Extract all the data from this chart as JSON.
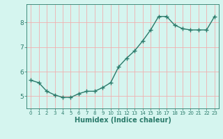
{
  "x": [
    0,
    1,
    2,
    3,
    4,
    5,
    6,
    7,
    8,
    9,
    10,
    11,
    12,
    13,
    14,
    15,
    16,
    17,
    18,
    19,
    20,
    21,
    22,
    23
  ],
  "y": [
    5.65,
    5.55,
    5.2,
    5.05,
    4.95,
    4.95,
    5.1,
    5.2,
    5.2,
    5.35,
    5.55,
    6.2,
    6.55,
    6.85,
    7.25,
    7.7,
    8.25,
    8.25,
    7.9,
    7.75,
    7.7,
    7.7,
    7.7,
    8.25
  ],
  "line_color": "#2a7a6a",
  "marker": "+",
  "marker_size": 4,
  "linewidth": 1.0,
  "xlabel": "Humidex (Indice chaleur)",
  "xlabel_fontsize": 7,
  "bg_color": "#d5f5ef",
  "grid_color": "#f0b0b0",
  "tick_color": "#2a7a6a",
  "axis_color": "#2a7a6a",
  "ylim": [
    4.5,
    8.75
  ],
  "xlim": [
    -0.5,
    23.5
  ],
  "yticks": [
    5,
    6,
    7,
    8
  ],
  "xticks": [
    0,
    1,
    2,
    3,
    4,
    5,
    6,
    7,
    8,
    9,
    10,
    11,
    12,
    13,
    14,
    15,
    16,
    17,
    18,
    19,
    20,
    21,
    22,
    23
  ],
  "tick_fontsize_x": 5,
  "tick_fontsize_y": 6.5
}
